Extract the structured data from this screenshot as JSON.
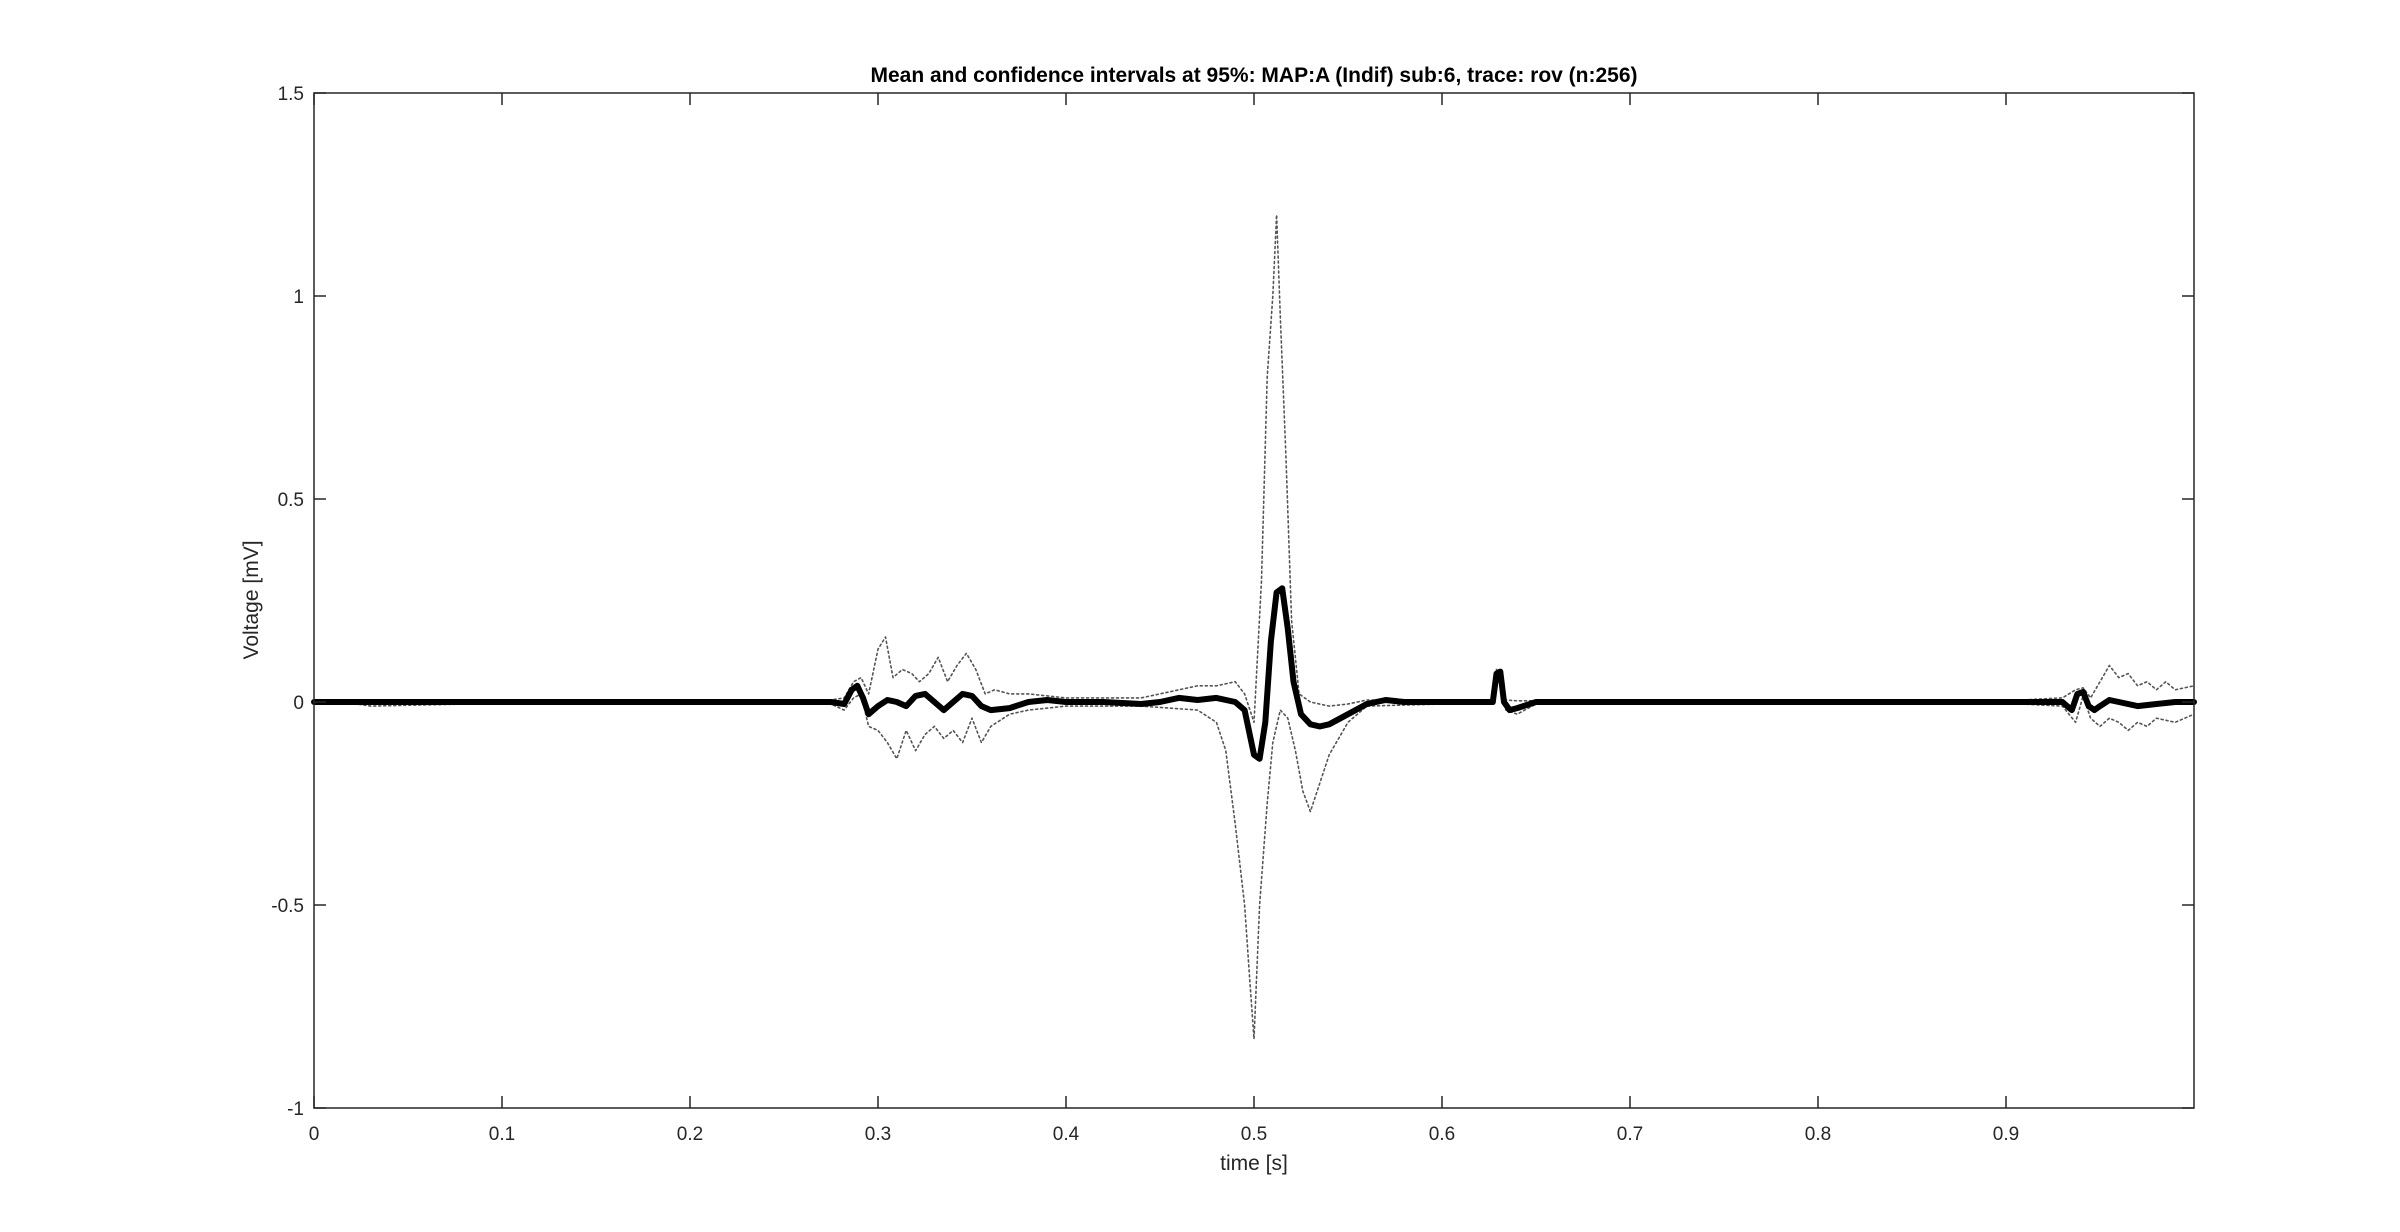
{
  "chart_data": {
    "type": "line",
    "title": "Mean and confidence intervals at 95%: MAP:A (Indif) sub:6, trace: rov (n:256)",
    "xlabel": "time [s]",
    "ylabel": "Voltage [mV]",
    "xlim": [
      0,
      1.0
    ],
    "ylim": [
      -1,
      1.5
    ],
    "xticks": [
      0,
      0.1,
      0.2,
      0.3,
      0.4,
      0.5,
      0.6,
      0.7,
      0.8,
      0.9
    ],
    "xtick_labels": [
      "0",
      "0.1",
      "0.2",
      "0.3",
      "0.4",
      "0.5",
      "0.6",
      "0.7",
      "0.8",
      "0.9"
    ],
    "yticks": [
      -1,
      -0.5,
      0,
      0.5,
      1,
      1.5
    ],
    "ytick_labels": [
      "-1",
      "-0.5",
      "0",
      "0.5",
      "1",
      "1.5"
    ],
    "grid": false,
    "legend": "none",
    "series": [
      {
        "role": "mean",
        "style": "solid-thick",
        "color": "#000000",
        "x": [
          0,
          0.05,
          0.1,
          0.15,
          0.2,
          0.25,
          0.275,
          0.282,
          0.286,
          0.289,
          0.292,
          0.295,
          0.3,
          0.305,
          0.31,
          0.315,
          0.32,
          0.325,
          0.33,
          0.335,
          0.34,
          0.345,
          0.35,
          0.355,
          0.36,
          0.37,
          0.38,
          0.39,
          0.4,
          0.42,
          0.44,
          0.45,
          0.46,
          0.47,
          0.48,
          0.49,
          0.495,
          0.5,
          0.503,
          0.506,
          0.509,
          0.512,
          0.515,
          0.518,
          0.521,
          0.525,
          0.53,
          0.535,
          0.54,
          0.55,
          0.56,
          0.57,
          0.58,
          0.6,
          0.62,
          0.627,
          0.629,
          0.631,
          0.633,
          0.636,
          0.64,
          0.65,
          0.7,
          0.8,
          0.9,
          0.92,
          0.93,
          0.935,
          0.938,
          0.941,
          0.944,
          0.947,
          0.95,
          0.955,
          0.96,
          0.97,
          0.98,
          0.99,
          1.0
        ],
        "y": [
          0,
          0,
          0,
          0,
          0,
          0,
          0,
          -0.005,
          0.03,
          0.04,
          0.01,
          -0.03,
          -0.01,
          0.005,
          0.0,
          -0.01,
          0.015,
          0.02,
          0.0,
          -0.02,
          0.0,
          0.02,
          0.015,
          -0.01,
          -0.02,
          -0.015,
          0.0,
          0.005,
          0.0,
          0.0,
          -0.005,
          0.0,
          0.01,
          0.005,
          0.01,
          0.0,
          -0.02,
          -0.13,
          -0.14,
          -0.05,
          0.15,
          0.27,
          0.28,
          0.18,
          0.05,
          -0.03,
          -0.055,
          -0.06,
          -0.055,
          -0.03,
          -0.005,
          0.005,
          0.0,
          0.0,
          0.0,
          0.0,
          0.07,
          0.075,
          0.0,
          -0.02,
          -0.015,
          0.0,
          0.0,
          0.0,
          0.0,
          0.0,
          0.0,
          -0.02,
          0.02,
          0.025,
          -0.01,
          -0.02,
          -0.01,
          0.005,
          0.0,
          -0.01,
          -0.005,
          0.0,
          0.0
        ]
      },
      {
        "role": "upper-95-CI",
        "style": "dotted",
        "color": "#555555",
        "x": [
          0,
          0.1,
          0.2,
          0.25,
          0.275,
          0.282,
          0.287,
          0.291,
          0.295,
          0.3,
          0.304,
          0.308,
          0.313,
          0.318,
          0.322,
          0.327,
          0.332,
          0.337,
          0.342,
          0.347,
          0.352,
          0.357,
          0.362,
          0.37,
          0.38,
          0.4,
          0.44,
          0.47,
          0.48,
          0.49,
          0.495,
          0.5,
          0.504,
          0.507,
          0.51,
          0.512,
          0.514,
          0.517,
          0.52,
          0.524,
          0.53,
          0.54,
          0.55,
          0.56,
          0.6,
          0.627,
          0.629,
          0.631,
          0.634,
          0.64,
          0.65,
          0.7,
          0.9,
          0.93,
          0.937,
          0.941,
          0.945,
          0.95,
          0.955,
          0.96,
          0.965,
          0.97,
          0.975,
          0.98,
          0.985,
          0.99,
          1.0
        ],
        "y": [
          0.003,
          0.003,
          0.003,
          0.003,
          0.005,
          0.01,
          0.05,
          0.06,
          0.02,
          0.13,
          0.16,
          0.06,
          0.08,
          0.07,
          0.05,
          0.07,
          0.11,
          0.05,
          0.09,
          0.12,
          0.08,
          0.02,
          0.03,
          0.02,
          0.02,
          0.01,
          0.01,
          0.04,
          0.04,
          0.05,
          0.02,
          -0.05,
          0.3,
          0.8,
          1.0,
          1.2,
          0.95,
          0.6,
          0.2,
          0.02,
          0.0,
          -0.01,
          -0.005,
          0.005,
          0.003,
          0.005,
          0.08,
          0.08,
          0.005,
          0.003,
          0.003,
          0.003,
          0.003,
          0.01,
          0.03,
          0.035,
          0.01,
          0.05,
          0.09,
          0.06,
          0.07,
          0.04,
          0.05,
          0.03,
          0.05,
          0.03,
          0.04
        ]
      },
      {
        "role": "lower-95-CI",
        "style": "dotted",
        "color": "#555555",
        "x": [
          0,
          0.02,
          0.03,
          0.1,
          0.2,
          0.25,
          0.275,
          0.282,
          0.287,
          0.291,
          0.295,
          0.3,
          0.305,
          0.31,
          0.315,
          0.32,
          0.325,
          0.33,
          0.335,
          0.34,
          0.345,
          0.35,
          0.355,
          0.36,
          0.37,
          0.38,
          0.4,
          0.44,
          0.47,
          0.48,
          0.485,
          0.49,
          0.495,
          0.498,
          0.5,
          0.503,
          0.507,
          0.51,
          0.514,
          0.518,
          0.522,
          0.526,
          0.53,
          0.535,
          0.54,
          0.55,
          0.56,
          0.6,
          0.627,
          0.63,
          0.634,
          0.64,
          0.65,
          0.7,
          0.9,
          0.93,
          0.937,
          0.941,
          0.945,
          0.95,
          0.955,
          0.96,
          0.965,
          0.97,
          0.975,
          0.98,
          0.99,
          1.0
        ],
        "y": [
          -0.003,
          -0.003,
          -0.01,
          -0.003,
          -0.003,
          -0.003,
          -0.005,
          -0.02,
          0.01,
          0.02,
          -0.06,
          -0.07,
          -0.1,
          -0.14,
          -0.07,
          -0.12,
          -0.08,
          -0.06,
          -0.09,
          -0.07,
          -0.1,
          -0.04,
          -0.1,
          -0.06,
          -0.03,
          -0.02,
          -0.01,
          -0.01,
          -0.02,
          -0.05,
          -0.12,
          -0.3,
          -0.5,
          -0.7,
          -0.83,
          -0.5,
          -0.25,
          -0.1,
          -0.02,
          -0.04,
          -0.12,
          -0.22,
          -0.27,
          -0.2,
          -0.13,
          -0.05,
          -0.01,
          -0.005,
          -0.005,
          0.06,
          -0.02,
          -0.03,
          -0.005,
          -0.003,
          -0.003,
          -0.01,
          -0.05,
          0.015,
          -0.04,
          -0.06,
          -0.04,
          -0.05,
          -0.07,
          -0.05,
          -0.06,
          -0.04,
          -0.05,
          -0.03
        ]
      }
    ]
  }
}
